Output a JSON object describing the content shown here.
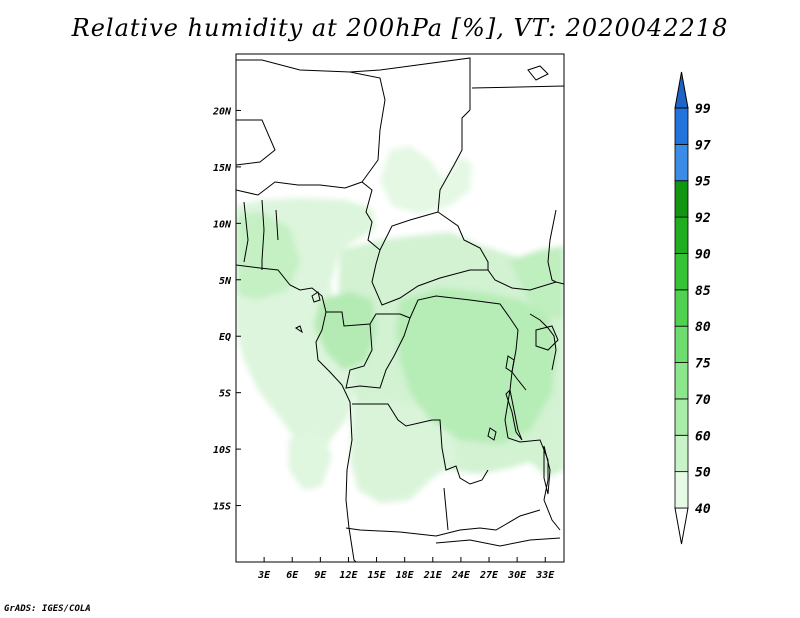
{
  "title": "Relative humidity at 200hPa [%], VT: 2020042218",
  "credit": "GrADS: IGES/COLA",
  "map": {
    "lon_range": [
      0,
      35
    ],
    "lat_range": [
      -20,
      25
    ],
    "lon_ticks": [
      {
        "value": 3,
        "label": "3E"
      },
      {
        "value": 6,
        "label": "6E"
      },
      {
        "value": 9,
        "label": "9E"
      },
      {
        "value": 12,
        "label": "12E"
      },
      {
        "value": 15,
        "label": "15E"
      },
      {
        "value": 18,
        "label": "18E"
      },
      {
        "value": 21,
        "label": "21E"
      },
      {
        "value": 24,
        "label": "24E"
      },
      {
        "value": 27,
        "label": "27E"
      },
      {
        "value": 30,
        "label": "30E"
      },
      {
        "value": 33,
        "label": "33E"
      }
    ],
    "lat_ticks": [
      {
        "value": 20,
        "label": "20N"
      },
      {
        "value": 15,
        "label": "15N"
      },
      {
        "value": 10,
        "label": "10N"
      },
      {
        "value": 5,
        "label": "5N"
      },
      {
        "value": 0,
        "label": "EQ"
      },
      {
        "value": -5,
        "label": "5S"
      },
      {
        "value": -10,
        "label": "10S"
      },
      {
        "value": -15,
        "label": "15S"
      }
    ]
  },
  "colorbar": {
    "levels": [
      "40",
      "50",
      "60",
      "70",
      "75",
      "80",
      "85",
      "90",
      "92",
      "95",
      "97",
      "99"
    ],
    "colors": [
      "#e6fae6",
      "#c8f2c8",
      "#a8eca8",
      "#8ce68c",
      "#6edc6e",
      "#50d250",
      "#37c337",
      "#20ad20",
      "#129612",
      "#3a8ce6",
      "#2274dc",
      "#1455c8"
    ],
    "below_color": "#ffffff",
    "above_color": "#1e64c8"
  },
  "colors": {
    "coast": "#000000",
    "frame": "#000000"
  }
}
